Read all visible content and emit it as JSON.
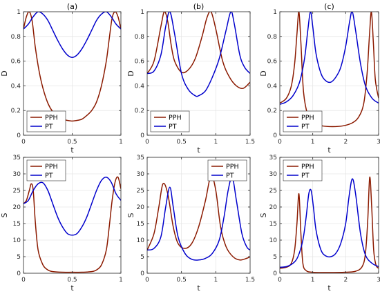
{
  "chart_data": [
    {
      "type": "line",
      "panel": "a-top",
      "title": "(a)",
      "xlabel": "t",
      "ylabel": "D",
      "xlim": [
        0,
        1
      ],
      "ylim": [
        0,
        1
      ],
      "xticks": [
        0,
        0.5,
        1
      ],
      "xtick_labels": [
        "0",
        "0.5",
        "1"
      ],
      "yticks": [
        0,
        0.2,
        0.4,
        0.6,
        0.8,
        1
      ],
      "ytick_labels": [
        "0",
        "0.2",
        "0.4",
        "0.6",
        "0.8",
        "1"
      ],
      "grid": true,
      "legend": "bottom-left",
      "series": [
        {
          "name": "PPH",
          "color": "#8b1a00",
          "x": [
            0,
            0.03,
            0.06,
            0.09,
            0.12,
            0.16,
            0.2,
            0.25,
            0.3,
            0.35,
            0.4,
            0.45,
            0.5,
            0.55,
            0.6,
            0.65,
            0.7,
            0.75,
            0.8,
            0.85,
            0.88,
            0.91,
            0.94,
            0.97,
            1
          ],
          "y": [
            0.86,
            0.96,
            1.0,
            0.92,
            0.72,
            0.52,
            0.38,
            0.26,
            0.19,
            0.15,
            0.13,
            0.12,
            0.115,
            0.12,
            0.13,
            0.16,
            0.2,
            0.27,
            0.4,
            0.6,
            0.78,
            0.95,
            1.0,
            0.96,
            0.86
          ]
        },
        {
          "name": "PT",
          "color": "#0000cc",
          "x": [
            0,
            0.05,
            0.1,
            0.15,
            0.2,
            0.25,
            0.3,
            0.35,
            0.4,
            0.45,
            0.5,
            0.55,
            0.6,
            0.65,
            0.7,
            0.75,
            0.8,
            0.85,
            0.9,
            0.95,
            1
          ],
          "y": [
            0.86,
            0.9,
            0.96,
            1.0,
            0.98,
            0.93,
            0.85,
            0.77,
            0.7,
            0.65,
            0.63,
            0.65,
            0.7,
            0.77,
            0.85,
            0.93,
            0.98,
            1.0,
            0.96,
            0.9,
            0.86
          ]
        }
      ]
    },
    {
      "type": "line",
      "panel": "b-top",
      "title": "(b)",
      "xlabel": "t",
      "ylabel": "D",
      "xlim": [
        0,
        1.5
      ],
      "ylim": [
        0,
        1
      ],
      "xticks": [
        0,
        0.5,
        1,
        1.5
      ],
      "xtick_labels": [
        "0",
        "0.5",
        "1",
        "1.5"
      ],
      "yticks": [
        0,
        0.2,
        0.4,
        0.6,
        0.8,
        1
      ],
      "ytick_labels": [
        "0",
        "0.2",
        "0.4",
        "0.6",
        "0.8",
        "1"
      ],
      "grid": true,
      "legend": "bottom-left",
      "series": [
        {
          "name": "PPH",
          "color": "#8b1a00",
          "x": [
            0,
            0.1,
            0.2,
            0.25,
            0.3,
            0.35,
            0.4,
            0.5,
            0.6,
            0.7,
            0.8,
            0.87,
            0.93,
            1.0,
            1.1,
            1.2,
            1.3,
            1.4,
            1.5
          ],
          "y": [
            0.5,
            0.6,
            0.88,
            1.0,
            0.92,
            0.73,
            0.6,
            0.51,
            0.53,
            0.62,
            0.8,
            0.95,
            1.0,
            0.86,
            0.6,
            0.47,
            0.4,
            0.38,
            0.43
          ]
        },
        {
          "name": "PT",
          "color": "#0000cc",
          "x": [
            0,
            0.1,
            0.2,
            0.27,
            0.33,
            0.4,
            0.5,
            0.6,
            0.7,
            0.75,
            0.85,
            0.95,
            1.05,
            1.15,
            1.22,
            1.27,
            1.35,
            1.42,
            1.5
          ],
          "y": [
            0.5,
            0.52,
            0.65,
            0.88,
            1.0,
            0.82,
            0.5,
            0.37,
            0.32,
            0.32,
            0.36,
            0.47,
            0.62,
            0.85,
            1.0,
            0.9,
            0.65,
            0.55,
            0.5
          ]
        }
      ]
    },
    {
      "type": "line",
      "panel": "c-top",
      "title": "(c)",
      "xlabel": "t",
      "ylabel": "D",
      "xlim": [
        0,
        3
      ],
      "ylim": [
        0,
        1
      ],
      "xticks": [
        0,
        1,
        2,
        3
      ],
      "xtick_labels": [
        "0",
        "1",
        "2",
        "3"
      ],
      "yticks": [
        0,
        0.2,
        0.4,
        0.6,
        0.8,
        1
      ],
      "ytick_labels": [
        "0",
        "0.2",
        "0.4",
        "0.6",
        "0.8",
        "1"
      ],
      "grid": true,
      "legend": "bottom-left",
      "series": [
        {
          "name": "PPH",
          "color": "#8b1a00",
          "x": [
            0,
            0.2,
            0.35,
            0.45,
            0.52,
            0.58,
            0.64,
            0.72,
            0.85,
            1.0,
            1.3,
            1.6,
            1.9,
            2.2,
            2.4,
            2.55,
            2.65,
            2.72,
            2.78,
            2.84,
            2.9,
            3.0
          ],
          "y": [
            0.26,
            0.3,
            0.4,
            0.58,
            0.82,
            1.0,
            0.75,
            0.35,
            0.16,
            0.1,
            0.075,
            0.07,
            0.075,
            0.1,
            0.15,
            0.26,
            0.5,
            0.8,
            1.0,
            0.75,
            0.45,
            0.3
          ]
        },
        {
          "name": "PT",
          "color": "#0000cc",
          "x": [
            0,
            0.2,
            0.4,
            0.6,
            0.75,
            0.85,
            0.93,
            1.0,
            1.1,
            1.25,
            1.4,
            1.55,
            1.7,
            1.85,
            2.0,
            2.12,
            2.2,
            2.3,
            2.45,
            2.6,
            2.8,
            3.0
          ],
          "y": [
            0.25,
            0.27,
            0.32,
            0.43,
            0.62,
            0.85,
            1.0,
            0.88,
            0.66,
            0.5,
            0.44,
            0.43,
            0.47,
            0.55,
            0.72,
            0.92,
            1.0,
            0.85,
            0.58,
            0.4,
            0.3,
            0.26
          ]
        }
      ]
    },
    {
      "type": "line",
      "panel": "a-bottom",
      "xlabel": "t",
      "ylabel": "S",
      "xlim": [
        0,
        1
      ],
      "ylim": [
        0,
        35
      ],
      "xticks": [
        0,
        0.5,
        1
      ],
      "xtick_labels": [
        "0",
        "0.5",
        "1"
      ],
      "yticks": [
        0,
        5,
        10,
        15,
        20,
        25,
        30,
        35
      ],
      "ytick_labels": [
        "0",
        "5",
        "10",
        "15",
        "20",
        "25",
        "30",
        "35"
      ],
      "grid": true,
      "legend": "top-left",
      "series": [
        {
          "name": "PPH",
          "color": "#8b1a00",
          "x": [
            0,
            0.03,
            0.06,
            0.08,
            0.1,
            0.12,
            0.15,
            0.2,
            0.25,
            0.3,
            0.4,
            0.5,
            0.6,
            0.7,
            0.75,
            0.8,
            0.85,
            0.88,
            0.91,
            0.94,
            0.97,
            1
          ],
          "y": [
            21,
            22,
            25,
            27,
            25,
            16,
            7,
            2.5,
            1,
            0.5,
            0.3,
            0.3,
            0.3,
            0.5,
            1,
            2.5,
            7,
            14,
            22,
            27.5,
            29,
            25.5
          ]
        },
        {
          "name": "PT",
          "color": "#0000cc",
          "x": [
            0,
            0.05,
            0.1,
            0.15,
            0.2,
            0.25,
            0.3,
            0.35,
            0.4,
            0.45,
            0.5,
            0.55,
            0.6,
            0.65,
            0.7,
            0.75,
            0.8,
            0.85,
            0.9,
            0.95,
            1
          ],
          "y": [
            21,
            22,
            25,
            27,
            27.3,
            25,
            21,
            17,
            14,
            12,
            11.5,
            12,
            14,
            17,
            21,
            25,
            28,
            29,
            27.5,
            24,
            22
          ]
        }
      ]
    },
    {
      "type": "line",
      "panel": "b-bottom",
      "xlabel": "t",
      "ylabel": "S",
      "xlim": [
        0,
        1.5
      ],
      "ylim": [
        0,
        35
      ],
      "xticks": [
        0,
        0.5,
        1,
        1.5
      ],
      "xtick_labels": [
        "0",
        "0.5",
        "1",
        "1.5"
      ],
      "yticks": [
        0,
        5,
        10,
        15,
        20,
        25,
        30,
        35
      ],
      "ytick_labels": [
        "0",
        "5",
        "10",
        "15",
        "20",
        "25",
        "30",
        "35"
      ],
      "grid": true,
      "legend": "top-right",
      "series": [
        {
          "name": "PPH",
          "color": "#8b1a00",
          "x": [
            0,
            0.1,
            0.17,
            0.23,
            0.3,
            0.38,
            0.45,
            0.55,
            0.65,
            0.75,
            0.85,
            0.93,
            1.0,
            1.07,
            1.15,
            1.25,
            1.35,
            1.45,
            1.5
          ],
          "y": [
            7,
            12,
            20,
            27,
            24,
            14,
            9,
            7.5,
            9,
            14,
            22,
            29.5,
            25,
            14,
            8,
            5,
            4,
            4.5,
            5
          ]
        },
        {
          "name": "PT",
          "color": "#0000cc",
          "x": [
            0,
            0.1,
            0.2,
            0.27,
            0.33,
            0.38,
            0.45,
            0.55,
            0.65,
            0.75,
            0.85,
            0.95,
            1.05,
            1.12,
            1.18,
            1.24,
            1.3,
            1.38,
            1.45,
            1.5
          ],
          "y": [
            7,
            7.5,
            11,
            20,
            26,
            20,
            11,
            6,
            4.2,
            4,
            4.5,
            6,
            10,
            17,
            25,
            29,
            22,
            12,
            8,
            7
          ]
        }
      ]
    },
    {
      "type": "line",
      "panel": "c-bottom",
      "xlabel": "t",
      "ylabel": "S",
      "xlim": [
        0,
        3
      ],
      "ylim": [
        0,
        35
      ],
      "xticks": [
        0,
        1,
        2,
        3
      ],
      "xtick_labels": [
        "0",
        "1",
        "2",
        "3"
      ],
      "yticks": [
        0,
        5,
        10,
        15,
        20,
        25,
        30,
        35
      ],
      "ytick_labels": [
        "0",
        "5",
        "10",
        "15",
        "20",
        "25",
        "30",
        "35"
      ],
      "grid": true,
      "legend": "top-left",
      "series": [
        {
          "name": "PPH",
          "color": "#8b1a00",
          "x": [
            0,
            0.2,
            0.35,
            0.45,
            0.52,
            0.58,
            0.64,
            0.7,
            0.8,
            1.0,
            1.5,
            2.0,
            2.3,
            2.5,
            2.6,
            2.67,
            2.73,
            2.79,
            2.85,
            2.92,
            3.0
          ],
          "y": [
            1.5,
            1.8,
            3,
            7,
            15,
            24,
            12,
            3,
            0.8,
            0.3,
            0.2,
            0.3,
            0.6,
            2,
            6,
            16,
            29,
            20,
            7,
            2.5,
            1.5
          ]
        },
        {
          "name": "PT",
          "color": "#0000cc",
          "x": [
            0,
            0.2,
            0.4,
            0.55,
            0.7,
            0.8,
            0.88,
            0.95,
            1.02,
            1.1,
            1.25,
            1.4,
            1.55,
            1.7,
            1.85,
            2.0,
            2.1,
            2.2,
            2.3,
            2.45,
            2.6,
            2.8,
            3.0
          ],
          "y": [
            1.8,
            2,
            3,
            5,
            10,
            17,
            24,
            25,
            20,
            13,
            7,
            5.2,
            5,
            6,
            9,
            15,
            23,
            28.5,
            24,
            12,
            5.5,
            3,
            2
          ]
        }
      ]
    }
  ]
}
